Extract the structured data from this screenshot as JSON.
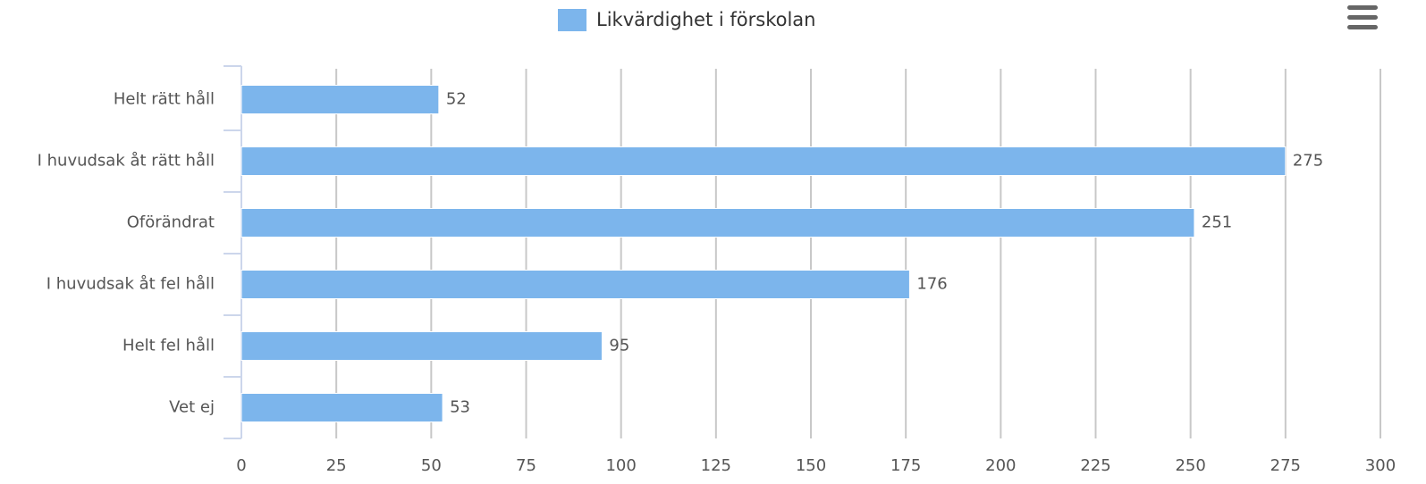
{
  "chart_data": {
    "type": "bar",
    "categories": [
      "Helt rätt håll",
      "I huvudsak åt rätt håll",
      "Oförändrat",
      "I huvudsak åt fel håll",
      "Helt fel håll",
      "Vet ej"
    ],
    "series": [
      {
        "name": "Likvärdighet i förskolan",
        "color": "#7cb5ec",
        "values": [
          52,
          275,
          251,
          176,
          95,
          53
        ]
      }
    ],
    "xlim": [
      0,
      300
    ],
    "xticks": [
      0,
      25,
      50,
      75,
      100,
      125,
      150,
      175,
      200,
      225,
      250,
      275,
      300
    ],
    "grid": true,
    "legend": "top",
    "data_labels": true
  }
}
